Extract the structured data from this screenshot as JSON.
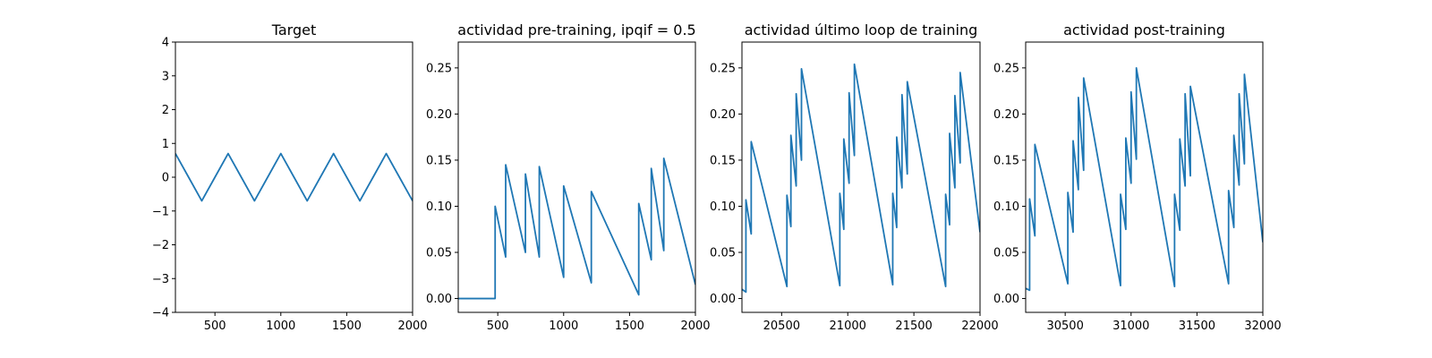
{
  "chart_data": [
    {
      "type": "line",
      "title": "Target",
      "xlim": [
        200,
        2000
      ],
      "ylim": [
        -4,
        4
      ],
      "xticks": [
        500,
        1000,
        1500,
        2000
      ],
      "yticks": [
        -4,
        -3,
        -2,
        -1,
        0,
        1,
        2,
        3,
        4
      ],
      "series_color": "#1f77b4",
      "series": [
        {
          "x": [
            200,
            300,
            400,
            500,
            600,
            700,
            800,
            900,
            1000,
            1100,
            1200,
            1300,
            1400,
            1500,
            1600,
            1700,
            1800,
            1900,
            2000
          ],
          "y": [
            0.7,
            0.0,
            -0.7,
            0.0,
            0.7,
            0.0,
            -0.7,
            0.0,
            0.7,
            0.0,
            -0.7,
            0.0,
            0.7,
            0.0,
            -0.7,
            0.0,
            0.7,
            0.0,
            -0.7
          ]
        }
      ]
    },
    {
      "type": "line",
      "title": "actividad pre-training, ipqif = 0.5",
      "xlim": [
        200,
        2000
      ],
      "ylim": [
        -0.015,
        0.278
      ],
      "xticks": [
        500,
        1000,
        1500,
        2000
      ],
      "yticks": [
        0.0,
        0.05,
        0.1,
        0.15,
        0.2,
        0.25
      ],
      "series_color": "#1f77b4",
      "series": [
        {
          "x": [
            200,
            480,
            480,
            560,
            560,
            710,
            710,
            815,
            815,
            1000,
            1000,
            1210,
            1210,
            1570,
            1570,
            1665,
            1665,
            1760,
            1760,
            2000
          ],
          "y": [
            0.0,
            0.0,
            0.1,
            0.045,
            0.145,
            0.05,
            0.135,
            0.045,
            0.143,
            0.023,
            0.122,
            0.017,
            0.116,
            0.004,
            0.103,
            0.042,
            0.141,
            0.052,
            0.152,
            0.015
          ]
        }
      ]
    },
    {
      "type": "line",
      "title": "actividad último loop de training",
      "xlim": [
        20200,
        22000
      ],
      "ylim": [
        -0.015,
        0.278
      ],
      "xticks": [
        20500,
        21000,
        21500,
        22000
      ],
      "yticks": [
        0.0,
        0.05,
        0.1,
        0.15,
        0.2,
        0.25
      ],
      "series_color": "#1f77b4",
      "series": [
        {
          "x": [
            20200,
            20230,
            20230,
            20270,
            20270,
            20540,
            20540,
            20570,
            20570,
            20610,
            20610,
            20650,
            20650,
            20940,
            20940,
            20970,
            20970,
            21010,
            21010,
            21050,
            21050,
            21340,
            21340,
            21370,
            21370,
            21410,
            21410,
            21450,
            21450,
            21740,
            21740,
            21770,
            21770,
            21810,
            21810,
            21850,
            21850,
            22000
          ],
          "y": [
            0.01,
            0.007,
            0.107,
            0.07,
            0.17,
            0.013,
            0.112,
            0.078,
            0.177,
            0.122,
            0.222,
            0.15,
            0.249,
            0.014,
            0.114,
            0.075,
            0.173,
            0.125,
            0.223,
            0.155,
            0.254,
            0.015,
            0.114,
            0.077,
            0.175,
            0.12,
            0.221,
            0.135,
            0.235,
            0.013,
            0.113,
            0.08,
            0.179,
            0.12,
            0.22,
            0.147,
            0.245,
            0.072
          ]
        }
      ]
    },
    {
      "type": "line",
      "title": "actividad post-training",
      "xlim": [
        30200,
        32000
      ],
      "ylim": [
        -0.015,
        0.278
      ],
      "xticks": [
        30500,
        31000,
        31500,
        32000
      ],
      "yticks": [
        0.0,
        0.05,
        0.1,
        0.15,
        0.2,
        0.25
      ],
      "series_color": "#1f77b4",
      "series": [
        {
          "x": [
            30200,
            30230,
            30230,
            30270,
            30270,
            30520,
            30520,
            30560,
            30560,
            30600,
            30600,
            30640,
            30640,
            30920,
            30920,
            30960,
            30960,
            31000,
            31000,
            31040,
            31040,
            31330,
            31330,
            31370,
            31370,
            31410,
            31410,
            31450,
            31450,
            31740,
            31740,
            31780,
            31780,
            31820,
            31820,
            31860,
            31860,
            32000
          ],
          "y": [
            0.011,
            0.009,
            0.108,
            0.068,
            0.167,
            0.016,
            0.115,
            0.072,
            0.171,
            0.118,
            0.218,
            0.139,
            0.239,
            0.014,
            0.113,
            0.075,
            0.174,
            0.125,
            0.224,
            0.151,
            0.25,
            0.013,
            0.113,
            0.074,
            0.173,
            0.122,
            0.222,
            0.133,
            0.23,
            0.016,
            0.117,
            0.077,
            0.177,
            0.123,
            0.222,
            0.146,
            0.243,
            0.061
          ]
        }
      ]
    }
  ]
}
